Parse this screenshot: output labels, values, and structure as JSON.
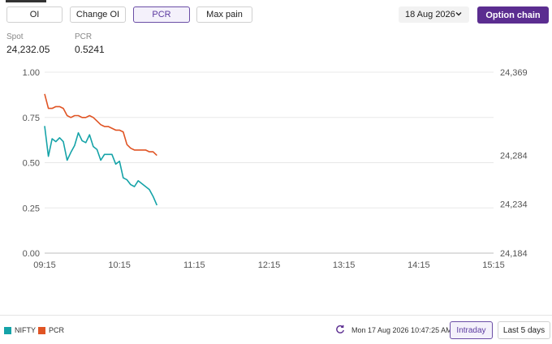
{
  "toolbar": {
    "tabs": [
      {
        "label": "OI",
        "active": false
      },
      {
        "label": "Change OI",
        "active": false
      },
      {
        "label": "PCR",
        "active": true
      },
      {
        "label": "Max pain",
        "active": false
      }
    ],
    "date": "18 Aug 2026",
    "option_chain_label": "Option chain"
  },
  "stats": {
    "spot_label": "Spot",
    "spot_value": "24,232.05",
    "pcr_label": "PCR",
    "pcr_value": "0.5241"
  },
  "colors": {
    "nifty": "#15a3a8",
    "pcr": "#e05424",
    "accent": "#5b2d90"
  },
  "chart_data": {
    "type": "line",
    "x_ticks": [
      "09:15",
      "10:15",
      "11:15",
      "12:15",
      "13:15",
      "14:15",
      "15:15"
    ],
    "y_left_ticks": [
      "0.00",
      "0.25",
      "0.50",
      "0.75",
      "1.00"
    ],
    "y_left_range": [
      0,
      1.0
    ],
    "y_right_ticks": [
      "24,184",
      "24,234",
      "24,284",
      "24,369"
    ],
    "y_right_range": [
      24184,
      24369
    ],
    "grid": true,
    "legend_position": "bottom-left",
    "series": [
      {
        "name": "NIFTY",
        "axis": "right",
        "color": "#15a3a8",
        "points": [
          [
            "09:15",
            24314
          ],
          [
            "09:18",
            24283
          ],
          [
            "09:21",
            24301
          ],
          [
            "09:24",
            24298
          ],
          [
            "09:27",
            24302
          ],
          [
            "09:30",
            24298
          ],
          [
            "09:33",
            24279
          ],
          [
            "09:36",
            24287
          ],
          [
            "09:39",
            24294
          ],
          [
            "09:42",
            24307
          ],
          [
            "09:45",
            24299
          ],
          [
            "09:48",
            24297
          ],
          [
            "09:51",
            24305
          ],
          [
            "09:54",
            24293
          ],
          [
            "09:57",
            24290
          ],
          [
            "10:00",
            24279
          ],
          [
            "10:03",
            24285
          ],
          [
            "10:06",
            24285
          ],
          [
            "10:09",
            24285
          ],
          [
            "10:12",
            24275
          ],
          [
            "10:15",
            24278
          ],
          [
            "10:18",
            24261
          ],
          [
            "10:21",
            24259
          ],
          [
            "10:24",
            24254
          ],
          [
            "10:27",
            24252
          ],
          [
            "10:30",
            24258
          ],
          [
            "10:33",
            24255
          ],
          [
            "10:36",
            24252
          ],
          [
            "10:39",
            24249
          ],
          [
            "10:42",
            24242
          ],
          [
            "10:45",
            24233
          ]
        ]
      },
      {
        "name": "PCR",
        "axis": "left",
        "color": "#e05424",
        "points": [
          [
            "09:15",
            0.88
          ],
          [
            "09:18",
            0.8
          ],
          [
            "09:21",
            0.8
          ],
          [
            "09:24",
            0.81
          ],
          [
            "09:27",
            0.81
          ],
          [
            "09:30",
            0.8
          ],
          [
            "09:33",
            0.76
          ],
          [
            "09:36",
            0.75
          ],
          [
            "09:39",
            0.76
          ],
          [
            "09:42",
            0.76
          ],
          [
            "09:45",
            0.75
          ],
          [
            "09:48",
            0.75
          ],
          [
            "09:51",
            0.76
          ],
          [
            "09:54",
            0.75
          ],
          [
            "09:57",
            0.73
          ],
          [
            "10:00",
            0.71
          ],
          [
            "10:03",
            0.7
          ],
          [
            "10:06",
            0.7
          ],
          [
            "10:09",
            0.69
          ],
          [
            "10:12",
            0.68
          ],
          [
            "10:15",
            0.68
          ],
          [
            "10:18",
            0.67
          ],
          [
            "10:21",
            0.6
          ],
          [
            "10:24",
            0.58
          ],
          [
            "10:27",
            0.57
          ],
          [
            "10:30",
            0.57
          ],
          [
            "10:33",
            0.57
          ],
          [
            "10:36",
            0.57
          ],
          [
            "10:39",
            0.56
          ],
          [
            "10:42",
            0.56
          ],
          [
            "10:45",
            0.54
          ]
        ]
      }
    ]
  },
  "footer": {
    "legend": [
      {
        "name": "NIFTY",
        "color": "#15a3a8"
      },
      {
        "name": "PCR",
        "color": "#e05424"
      }
    ],
    "refresh_icon": "refresh-icon",
    "timestamp": "Mon 17 Aug 2026 10:47:25 AM",
    "ranges": [
      {
        "label": "Intraday",
        "active": true
      },
      {
        "label": "Last 5 days",
        "active": false
      }
    ]
  }
}
